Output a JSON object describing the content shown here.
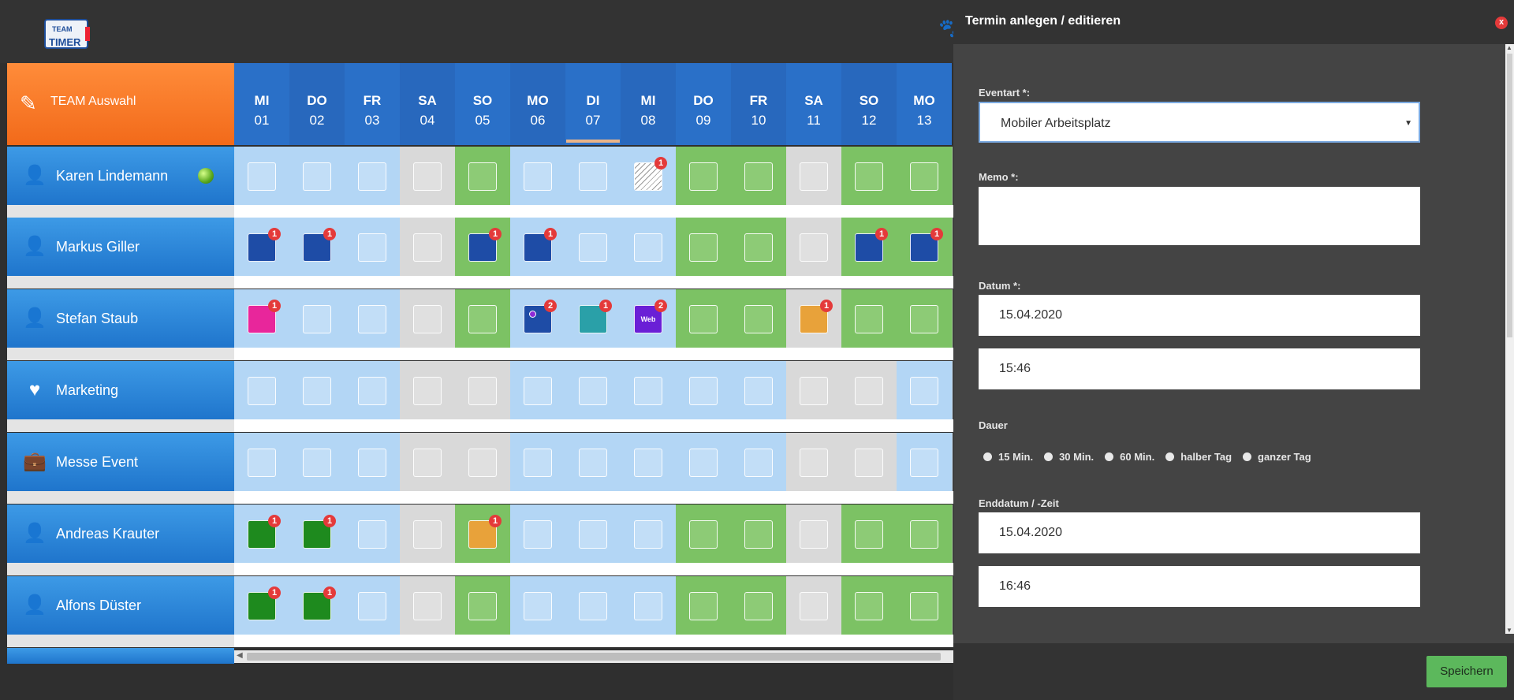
{
  "app": {
    "logo_top": "TEAM",
    "logo_main": "TIMER"
  },
  "team_select": {
    "label": "TEAM Auswahl"
  },
  "days": [
    {
      "wd": "MI",
      "dn": "01"
    },
    {
      "wd": "DO",
      "dn": "02"
    },
    {
      "wd": "FR",
      "dn": "03"
    },
    {
      "wd": "SA",
      "dn": "04"
    },
    {
      "wd": "SO",
      "dn": "05"
    },
    {
      "wd": "MO",
      "dn": "06"
    },
    {
      "wd": "DI",
      "dn": "07"
    },
    {
      "wd": "MI",
      "dn": "08"
    },
    {
      "wd": "DO",
      "dn": "09"
    },
    {
      "wd": "FR",
      "dn": "10"
    },
    {
      "wd": "SA",
      "dn": "11"
    },
    {
      "wd": "SO",
      "dn": "12"
    },
    {
      "wd": "MO",
      "dn": "13"
    }
  ],
  "rows": [
    {
      "name": "Karen Lindemann",
      "icon": "user-icon",
      "online": true,
      "cells": [
        {
          "bg": "#b3d6f5"
        },
        {
          "bg": "#b3d6f5"
        },
        {
          "bg": "#b3d6f5"
        },
        {
          "bg": "#d9d9d9"
        },
        {
          "bg": "#7cc264",
          "box": "#8dcb76"
        },
        {
          "bg": "#b3d6f5"
        },
        {
          "bg": "#b3d6f5"
        },
        {
          "bg": "#b3d6f5",
          "pattern": "hatched",
          "badge": "1"
        },
        {
          "bg": "#7cc264",
          "box": "#8dcb76"
        },
        {
          "bg": "#7cc264",
          "box": "#8dcb76"
        },
        {
          "bg": "#d9d9d9"
        },
        {
          "bg": "#7cc264",
          "box": "#8dcb76"
        },
        {
          "bg": "#7cc264",
          "box": "#8dcb76"
        }
      ]
    },
    {
      "name": "Markus Giller",
      "icon": "user-icon",
      "cells": [
        {
          "bg": "#b3d6f5",
          "box": "#1e4ca6",
          "badge": "1"
        },
        {
          "bg": "#b3d6f5",
          "box": "#1e4ca6",
          "badge": "1"
        },
        {
          "bg": "#b3d6f5"
        },
        {
          "bg": "#d9d9d9"
        },
        {
          "bg": "#7cc264",
          "box": "#1e4ca6",
          "badge": "1"
        },
        {
          "bg": "#b3d6f5",
          "box": "#1e4ca6",
          "badge": "1"
        },
        {
          "bg": "#b3d6f5"
        },
        {
          "bg": "#b3d6f5"
        },
        {
          "bg": "#7cc264",
          "box": "#8dcb76"
        },
        {
          "bg": "#7cc264",
          "box": "#8dcb76"
        },
        {
          "bg": "#d9d9d9"
        },
        {
          "bg": "#7cc264",
          "box": "#1e4ca6",
          "badge": "1"
        },
        {
          "bg": "#7cc264",
          "box": "#1e4ca6",
          "badge": "1"
        }
      ]
    },
    {
      "name": "Stefan Staub",
      "icon": "user-icon",
      "cells": [
        {
          "bg": "#b3d6f5",
          "box": "#e8269b",
          "badge": "1"
        },
        {
          "bg": "#b3d6f5"
        },
        {
          "bg": "#b3d6f5"
        },
        {
          "bg": "#d9d9d9"
        },
        {
          "bg": "#7cc264",
          "box": "#8dcb76"
        },
        {
          "bg": "#b3d6f5",
          "box": "#1e4ca6",
          "badge": "2",
          "ring": true
        },
        {
          "bg": "#b3d6f5",
          "box": "#2aa0a8",
          "badge": "1"
        },
        {
          "bg": "#b3d6f5",
          "box": "#6a1fd6",
          "badge": "2",
          "label": "Web"
        },
        {
          "bg": "#7cc264",
          "box": "#8dcb76"
        },
        {
          "bg": "#7cc264",
          "box": "#8dcb76"
        },
        {
          "bg": "#d9d9d9",
          "box": "#e8a23a",
          "badge": "1"
        },
        {
          "bg": "#7cc264",
          "box": "#8dcb76"
        },
        {
          "bg": "#7cc264",
          "box": "#8dcb76"
        }
      ]
    },
    {
      "name": "Marketing",
      "icon": "heart-icon",
      "cells": [
        {
          "bg": "#b3d6f5"
        },
        {
          "bg": "#b3d6f5"
        },
        {
          "bg": "#b3d6f5"
        },
        {
          "bg": "#d9d9d9"
        },
        {
          "bg": "#d9d9d9"
        },
        {
          "bg": "#b3d6f5"
        },
        {
          "bg": "#b3d6f5"
        },
        {
          "bg": "#b3d6f5"
        },
        {
          "bg": "#b3d6f5"
        },
        {
          "bg": "#b3d6f5"
        },
        {
          "bg": "#d9d9d9"
        },
        {
          "bg": "#d9d9d9"
        },
        {
          "bg": "#b3d6f5"
        }
      ]
    },
    {
      "name": "Messe Event",
      "icon": "briefcase-icon",
      "cells": [
        {
          "bg": "#b3d6f5"
        },
        {
          "bg": "#b3d6f5"
        },
        {
          "bg": "#b3d6f5"
        },
        {
          "bg": "#d9d9d9"
        },
        {
          "bg": "#d9d9d9"
        },
        {
          "bg": "#b3d6f5"
        },
        {
          "bg": "#b3d6f5"
        },
        {
          "bg": "#b3d6f5"
        },
        {
          "bg": "#b3d6f5"
        },
        {
          "bg": "#b3d6f5"
        },
        {
          "bg": "#d9d9d9"
        },
        {
          "bg": "#d9d9d9"
        },
        {
          "bg": "#b3d6f5"
        }
      ]
    },
    {
      "name": "Andreas Krauter",
      "icon": "user-icon",
      "cells": [
        {
          "bg": "#b3d6f5",
          "box": "#1e8a1e",
          "badge": "1"
        },
        {
          "bg": "#b3d6f5",
          "box": "#1e8a1e",
          "badge": "1"
        },
        {
          "bg": "#b3d6f5"
        },
        {
          "bg": "#d9d9d9"
        },
        {
          "bg": "#7cc264",
          "box": "#e8a23a",
          "badge": "1"
        },
        {
          "bg": "#b3d6f5"
        },
        {
          "bg": "#b3d6f5"
        },
        {
          "bg": "#b3d6f5"
        },
        {
          "bg": "#7cc264",
          "box": "#8dcb76"
        },
        {
          "bg": "#7cc264",
          "box": "#8dcb76"
        },
        {
          "bg": "#d9d9d9"
        },
        {
          "bg": "#7cc264",
          "box": "#8dcb76"
        },
        {
          "bg": "#7cc264",
          "box": "#8dcb76"
        }
      ]
    },
    {
      "name": "Alfons Düster",
      "icon": "user-icon",
      "cells": [
        {
          "bg": "#b3d6f5",
          "box": "#1e8a1e",
          "badge": "1"
        },
        {
          "bg": "#b3d6f5",
          "box": "#1e8a1e",
          "badge": "1"
        },
        {
          "bg": "#b3d6f5"
        },
        {
          "bg": "#d9d9d9"
        },
        {
          "bg": "#7cc264",
          "box": "#8dcb76"
        },
        {
          "bg": "#b3d6f5"
        },
        {
          "bg": "#b3d6f5"
        },
        {
          "bg": "#b3d6f5"
        },
        {
          "bg": "#7cc264",
          "box": "#8dcb76"
        },
        {
          "bg": "#7cc264",
          "box": "#8dcb76"
        },
        {
          "bg": "#d9d9d9"
        },
        {
          "bg": "#7cc264",
          "box": "#8dcb76"
        },
        {
          "bg": "#7cc264",
          "box": "#8dcb76"
        }
      ]
    }
  ],
  "modal": {
    "title": "Termin anlegen / editieren",
    "close": "x",
    "eventart_label": "Eventart *:",
    "eventart_value": "Mobiler Arbeitsplatz",
    "memo_label": "Memo *:",
    "memo_value": "",
    "datum_label": "Datum *:",
    "datum_value": "15.04.2020",
    "time_value": "15:46",
    "dauer_label": "Dauer",
    "dauer_options": [
      "15 Min.",
      "30 Min.",
      "60 Min.",
      "halber Tag",
      "ganzer Tag"
    ],
    "end_label": "Enddatum / -Zeit",
    "end_date_value": "15.04.2020",
    "end_time_value": "16:46",
    "save_label": "Speichern"
  }
}
